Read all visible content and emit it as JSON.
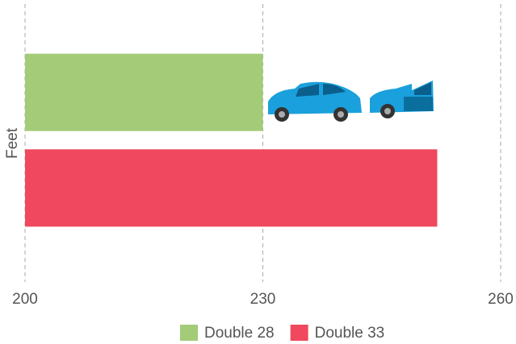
{
  "chart_data": {
    "type": "hbar",
    "ylabel": "Feet",
    "categories": [
      null
    ],
    "series": [
      {
        "name": "Double 28",
        "color": "#a3cb78",
        "values": [
          230
        ]
      },
      {
        "name": "Double 33",
        "color": "#f0485e",
        "values": [
          252
        ]
      }
    ],
    "xlim": [
      200,
      260
    ],
    "xticks": [
      200,
      230,
      260
    ],
    "grid": true,
    "legend": "bottom"
  }
}
